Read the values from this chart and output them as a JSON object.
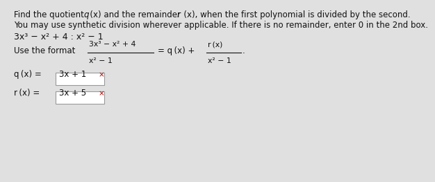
{
  "bg_color": "#e0e0e0",
  "text_color": "#111111",
  "red_color": "#aa0000",
  "box_color": "#ffffff",
  "box_border": "#999999",
  "fs_main": 8.5,
  "fs_math": 9.0,
  "fs_small": 7.8,
  "line1_plain1": "Find the quotient ",
  "line1_italic1": "q",
  "line1_plain2": " (x) and the remainder ",
  "line1_italic2": "r",
  "line1_plain3": " (x), when the first polynomial is divided by the second.",
  "line2": "You may use synthetic division wherever applicable. If there is no remainder, enter 0 in the 2nd box.",
  "problem": "3x³ − x² + 4 : x² − 1",
  "format_text": "Use the format",
  "num": "3x³ − x² + 4",
  "den": "x² − 1",
  "eq_right": "= q (x) +",
  "frac2_num": "r (x)",
  "frac2_den": "x² − 1",
  "period": ".",
  "q_label": "q (x) =",
  "q_value": "3x + 1",
  "r_label": "r (x) =",
  "r_value": "3x + 5",
  "x_mark": "×"
}
